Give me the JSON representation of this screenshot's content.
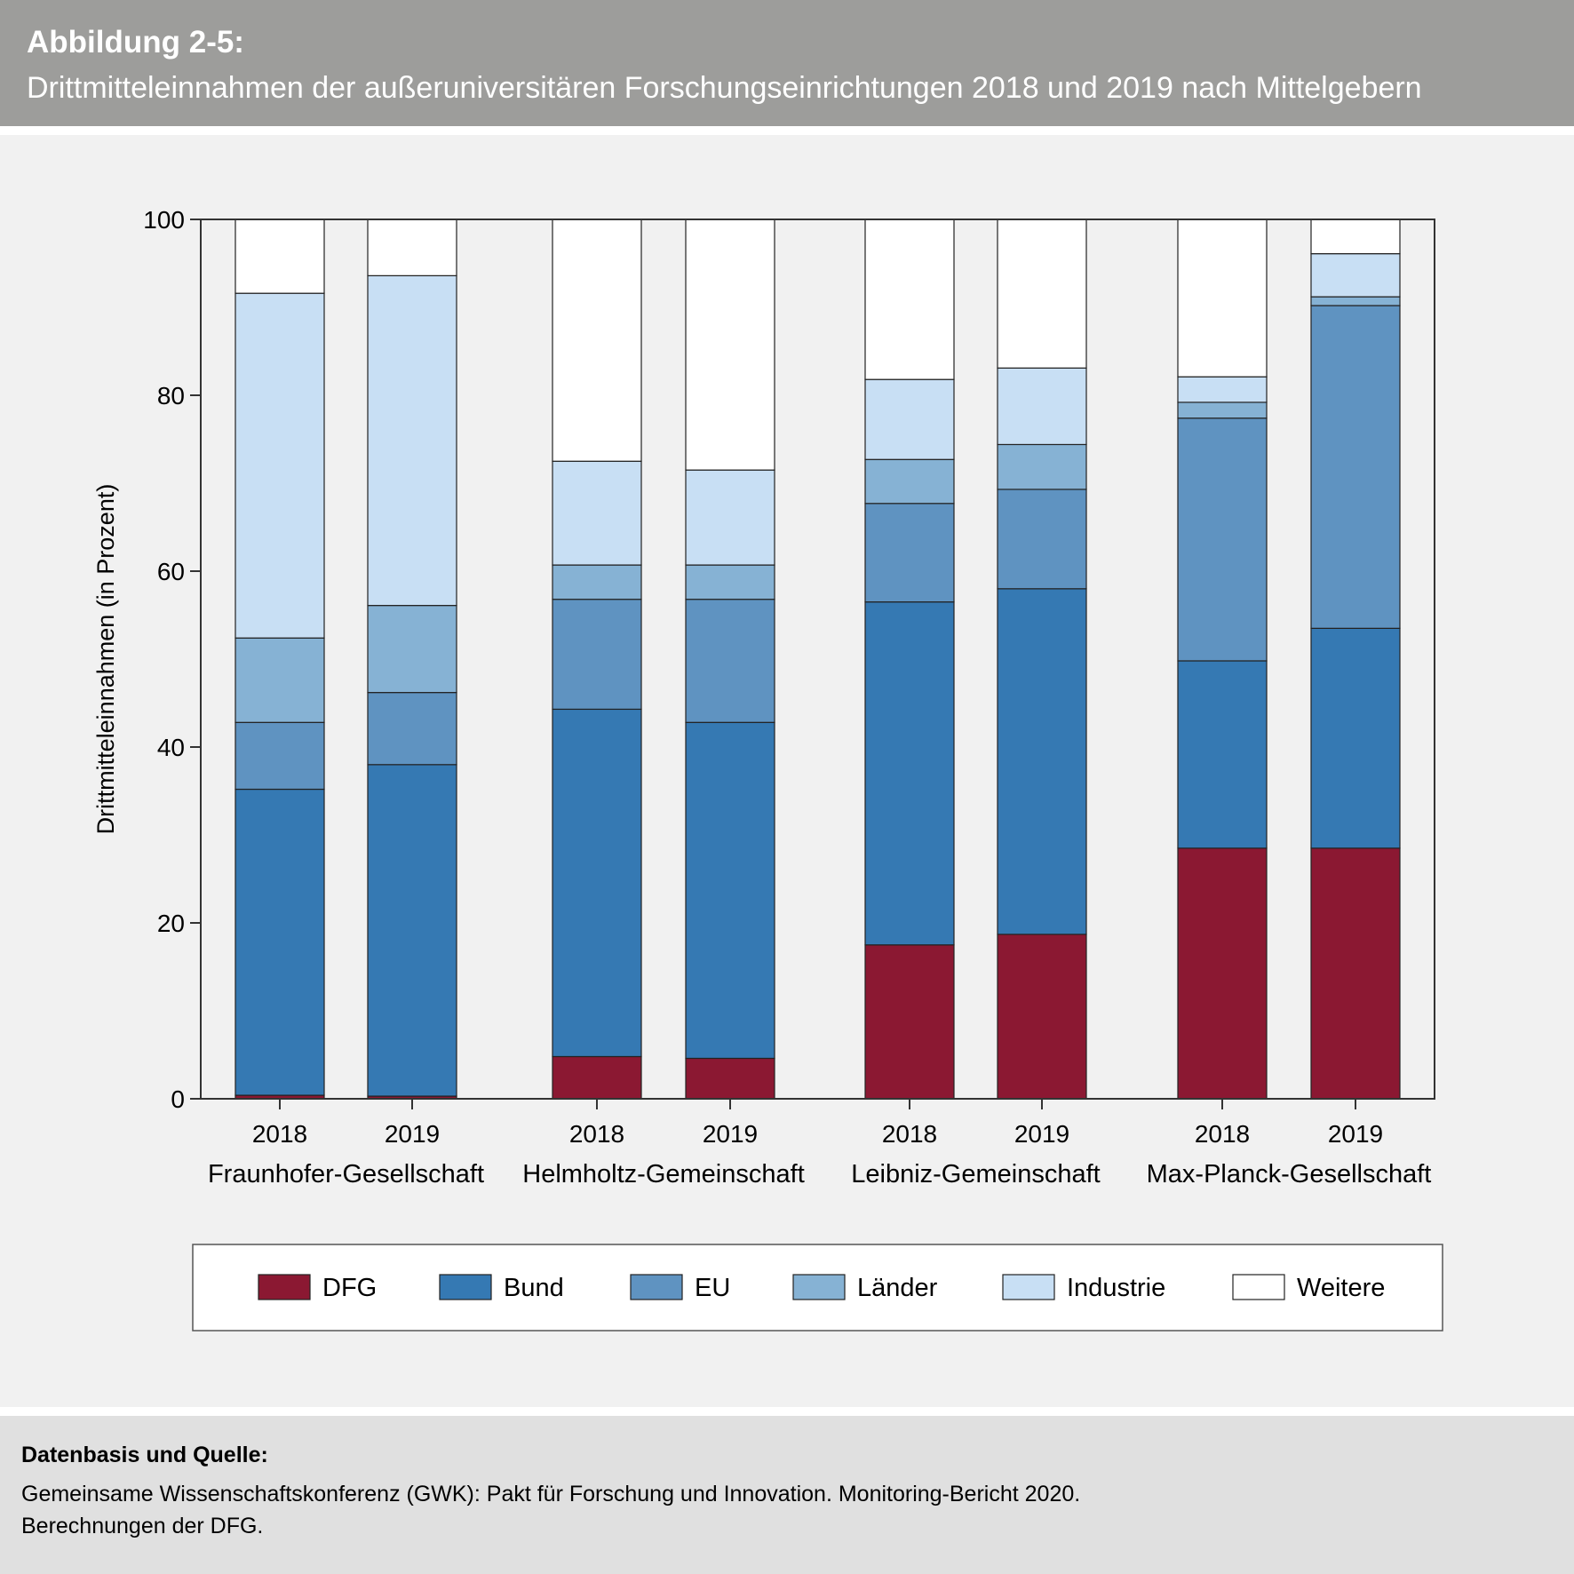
{
  "header": {
    "label": "Abbildung 2-5:",
    "title": "Drittmitteleinnahmen der außeruniversitären Forschungseinrichtungen 2018 und 2019 nach Mittelgebern"
  },
  "source": {
    "heading": "Datenbasis und Quelle:",
    "line1": "Gemeinsame Wissenschaftskonferenz (GWK): Pakt für Forschung und Innovation. Monitoring-Bericht 2020.",
    "line2": "Berechnungen der DFG."
  },
  "chart_data": {
    "type": "bar",
    "stacked": true,
    "ylabel": "Drittmitteleinnahmen (in Prozent)",
    "ylim": [
      0,
      100
    ],
    "yticks": [
      "0",
      "20",
      "40",
      "60",
      "80",
      "100"
    ],
    "groups": [
      "Fraunhofer-Gesellschaft",
      "Helmholtz-Gemeinschaft",
      "Leibniz-Gemeinschaft",
      "Max-Planck-Gesellschaft"
    ],
    "categories": [
      "2018",
      "2019",
      "2018",
      "2019",
      "2018",
      "2019",
      "2018",
      "2019"
    ],
    "legend_position": "bottom",
    "series": [
      {
        "name": "DFG",
        "color": "#8b1832",
        "values": [
          0.4,
          0.3,
          4.8,
          4.6,
          17.5,
          18.7,
          28.5,
          28.5
        ]
      },
      {
        "name": "Bund",
        "color": "#3579b3",
        "values": [
          34.8,
          37.7,
          39.5,
          38.2,
          39.0,
          39.3,
          21.3,
          25.0
        ]
      },
      {
        "name": "EU",
        "color": "#5f93c1",
        "values": [
          7.6,
          8.2,
          12.5,
          14.0,
          11.2,
          11.3,
          27.6,
          36.7
        ]
      },
      {
        "name": "Länder",
        "color": "#86b2d4",
        "values": [
          9.6,
          9.9,
          3.9,
          3.9,
          5.0,
          5.1,
          1.8,
          1.0
        ]
      },
      {
        "name": "Industrie",
        "color": "#c8dff4",
        "values": [
          39.2,
          37.5,
          11.8,
          10.8,
          9.1,
          8.7,
          2.9,
          4.9
        ]
      },
      {
        "name": "Weitere",
        "color": "#ffffff",
        "values": [
          8.4,
          6.4,
          27.5,
          28.5,
          18.2,
          16.9,
          17.9,
          3.9
        ]
      }
    ]
  }
}
